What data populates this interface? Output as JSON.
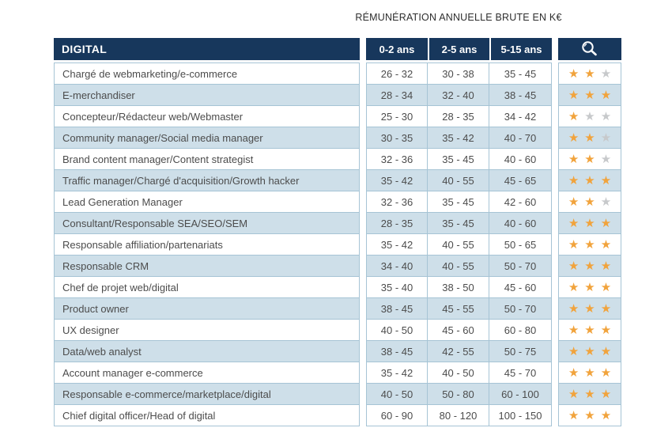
{
  "title": "RÉMUNÉRATION ANNUELLE BRUTE EN K€",
  "table": {
    "category_header": "DIGITAL",
    "experience_columns": [
      "0-2 ans",
      "2-5 ans",
      "5-15 ans"
    ],
    "header_icon": "magnifier-icon",
    "stars_max": 3,
    "rows": [
      {
        "job": "Chargé de webmarketing/e-commerce",
        "salaries": [
          "26 - 32",
          "30 - 38",
          "35 - 45"
        ],
        "stars": 2
      },
      {
        "job": "E-merchandiser",
        "salaries": [
          "28 - 34",
          "32 - 40",
          "38 - 45"
        ],
        "stars": 3
      },
      {
        "job": "Concepteur/Rédacteur web/Webmaster",
        "salaries": [
          "25 - 30",
          "28 - 35",
          "34 - 42"
        ],
        "stars": 1
      },
      {
        "job": "Community manager/Social media manager",
        "salaries": [
          "30 - 35",
          "35 - 42",
          "40 - 70"
        ],
        "stars": 2
      },
      {
        "job": "Brand content manager/Content strategist",
        "salaries": [
          "32 - 36",
          "35 - 45",
          "40 - 60"
        ],
        "stars": 2
      },
      {
        "job": "Traffic manager/Chargé d'acquisition/Growth hacker",
        "salaries": [
          "35 - 42",
          "40 - 55",
          "45 - 65"
        ],
        "stars": 3
      },
      {
        "job": "Lead Generation Manager",
        "salaries": [
          "32 - 36",
          "35 - 45",
          "42 - 60"
        ],
        "stars": 2
      },
      {
        "job": "Consultant/Responsable SEA/SEO/SEM",
        "salaries": [
          "28 - 35",
          "35 - 45",
          "40 - 60"
        ],
        "stars": 3
      },
      {
        "job": "Responsable affiliation/partenariats",
        "salaries": [
          "35 - 42",
          "40 - 55",
          "50 - 65"
        ],
        "stars": 3
      },
      {
        "job": "Responsable CRM",
        "salaries": [
          "34 - 40",
          "40 - 55",
          "50 - 70"
        ],
        "stars": 3
      },
      {
        "job": "Chef de projet web/digital",
        "salaries": [
          "35 - 40",
          "38 - 50",
          "45 - 60"
        ],
        "stars": 3
      },
      {
        "job": "Product owner",
        "salaries": [
          "38 - 45",
          "45 - 55",
          "50 - 70"
        ],
        "stars": 3
      },
      {
        "job": "UX designer",
        "salaries": [
          "40 - 50",
          "45 - 60",
          "60 - 80"
        ],
        "stars": 3
      },
      {
        "job": "Data/web analyst",
        "salaries": [
          "38 - 45",
          "42 - 55",
          "50 - 75"
        ],
        "stars": 3
      },
      {
        "job": "Account manager e-commerce",
        "salaries": [
          "35 - 42",
          "40 - 50",
          "45 - 70"
        ],
        "stars": 3
      },
      {
        "job": "Responsable e-commerce/marketplace/digital",
        "salaries": [
          "40 - 50",
          "50 - 80",
          "60 - 100"
        ],
        "stars": 3
      },
      {
        "job": "Chief digital officer/Head of digital",
        "salaries": [
          "60 - 90",
          "80 - 120",
          "100 - 150"
        ],
        "stars": 3
      }
    ]
  },
  "colors": {
    "header_navy": "#17375c",
    "alt_row_blue": "#cedfe9",
    "border_blue": "#a6c4d5",
    "star_filled": "#f1a33c",
    "star_empty": "#c7c9cb"
  }
}
